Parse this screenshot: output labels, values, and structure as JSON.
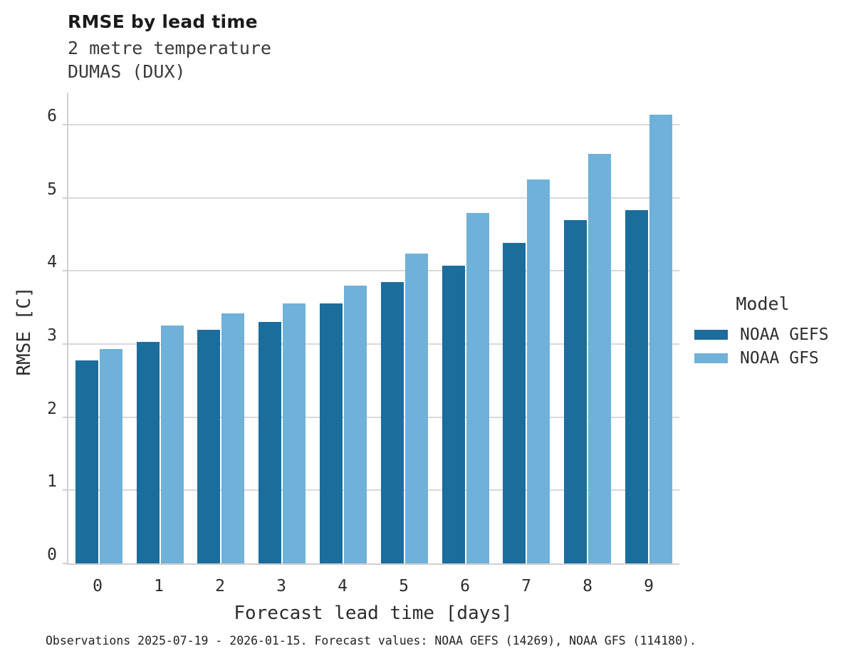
{
  "header": {
    "title": "RMSE by lead time",
    "subtitle_line1": "2 metre temperature",
    "subtitle_line2": "DUMAS (DUX)"
  },
  "chart_data": {
    "type": "bar",
    "title": "RMSE by lead time",
    "subtitle": [
      "2 metre temperature",
      "DUMAS (DUX)"
    ],
    "categories": [
      "0",
      "1",
      "2",
      "3",
      "4",
      "5",
      "6",
      "7",
      "8",
      "9"
    ],
    "series": [
      {
        "name": "NOAA GEFS",
        "color": "#1b6d9c",
        "values": [
          2.78,
          3.03,
          3.2,
          3.3,
          3.56,
          3.85,
          4.07,
          4.38,
          4.7,
          4.83
        ]
      },
      {
        "name": "NOAA GFS",
        "color": "#6fb1d9",
        "values": [
          2.93,
          3.25,
          3.42,
          3.56,
          3.8,
          4.24,
          4.79,
          5.25,
          5.6,
          6.14
        ]
      }
    ],
    "xlabel": "Forecast lead time [days]",
    "ylabel": "RMSE [C]",
    "ylim": [
      0,
      6.46
    ],
    "yticks": [
      0,
      1,
      2,
      3,
      4,
      5,
      6
    ],
    "grid": true,
    "legend_title": "Model",
    "legend_position": "right"
  },
  "legend": {
    "title": "Model",
    "entries": [
      "NOAA GEFS",
      "NOAA GFS"
    ]
  },
  "footer": {
    "text": "Observations 2025-07-19 - 2026-01-15. Forecast values: NOAA GEFS (14269), NOAA GFS (114180)."
  }
}
